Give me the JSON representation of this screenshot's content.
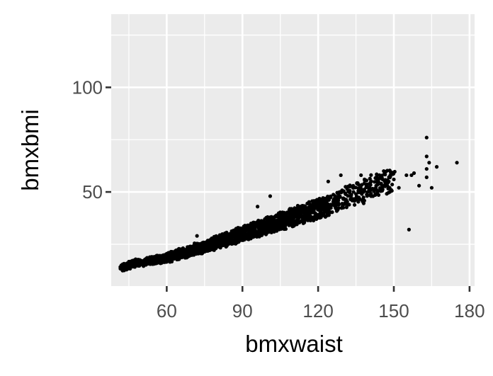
{
  "chart_data": {
    "type": "scatter",
    "title": "",
    "xlabel": "bmxwaist",
    "ylabel": "bmxbmi",
    "xlim": [
      38,
      182
    ],
    "ylim": [
      5,
      135
    ],
    "x_ticks": [
      60,
      90,
      120,
      150,
      180
    ],
    "x_tick_labels": [
      "60",
      "90",
      "120",
      "150",
      "180"
    ],
    "y_ticks": [
      50,
      100
    ],
    "y_tick_labels": [
      "50",
      "100"
    ],
    "grid": true,
    "legend": "none",
    "point_color": "#000000",
    "panel_color": "#ebebeb",
    "grid_color": "#ffffff",
    "points": [
      [
        42,
        14
      ],
      [
        43,
        13.5
      ],
      [
        44,
        15
      ],
      [
        45,
        14.5
      ],
      [
        46,
        16
      ],
      [
        47,
        15.5
      ],
      [
        48,
        16.5
      ],
      [
        50,
        16
      ],
      [
        52,
        17
      ],
      [
        55,
        17.5
      ],
      [
        58,
        18
      ],
      [
        62,
        19
      ],
      [
        65,
        20.5
      ],
      [
        68,
        21
      ],
      [
        70,
        22
      ],
      [
        72,
        23
      ],
      [
        75,
        23.5
      ],
      [
        78,
        25
      ],
      [
        80,
        26
      ],
      [
        83,
        27
      ],
      [
        85,
        28
      ],
      [
        88,
        29
      ],
      [
        90,
        30
      ],
      [
        93,
        31
      ],
      [
        95,
        32
      ],
      [
        98,
        33
      ],
      [
        100,
        34
      ],
      [
        103,
        35
      ],
      [
        105,
        36
      ],
      [
        108,
        37
      ],
      [
        110,
        38
      ],
      [
        113,
        39
      ],
      [
        115,
        40
      ],
      [
        118,
        41
      ],
      [
        120,
        42
      ],
      [
        123,
        43
      ],
      [
        125,
        44
      ],
      [
        128,
        46
      ],
      [
        130,
        47
      ],
      [
        133,
        48
      ],
      [
        135,
        49
      ],
      [
        138,
        50
      ],
      [
        140,
        52
      ],
      [
        143,
        53
      ],
      [
        145,
        54
      ],
      [
        148,
        55
      ],
      [
        150,
        56
      ],
      [
        155,
        58
      ],
      [
        157,
        58
      ],
      [
        158,
        59
      ],
      [
        160,
        53
      ],
      [
        163,
        61
      ],
      [
        163,
        57
      ],
      [
        164,
        64
      ],
      [
        163,
        67
      ],
      [
        163,
        76
      ],
      [
        165,
        52
      ],
      [
        167,
        62
      ],
      [
        175,
        64
      ],
      [
        156,
        32
      ],
      [
        152,
        52
      ],
      [
        146,
        60
      ],
      [
        137,
        58
      ],
      [
        129,
        58
      ],
      [
        124,
        55
      ],
      [
        101,
        48
      ],
      [
        96,
        43
      ],
      [
        72,
        29
      ]
    ]
  }
}
